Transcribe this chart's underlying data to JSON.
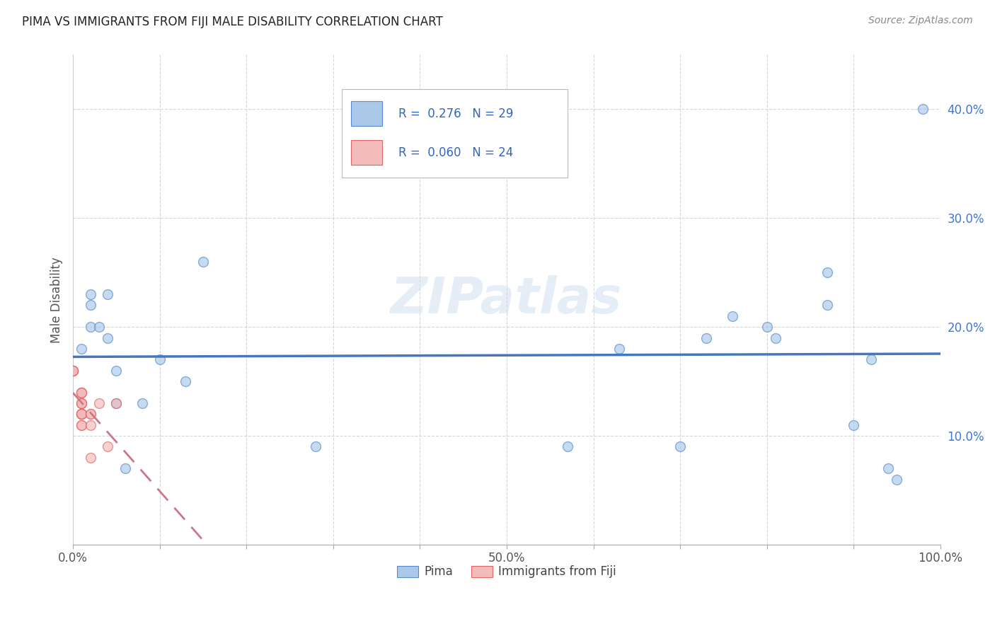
{
  "title": "PIMA VS IMMIGRANTS FROM FIJI MALE DISABILITY CORRELATION CHART",
  "source": "Source: ZipAtlas.com",
  "ylabel": "Male Disability",
  "xlim": [
    0,
    1.0
  ],
  "ylim": [
    0,
    0.45
  ],
  "pima_color": "#a8c8e8",
  "fiji_color": "#f4b8b8",
  "pima_edge": "#5588cc",
  "fiji_edge": "#dd6666",
  "pima_line_color": "#4477bb",
  "fiji_line_color": "#cc7788",
  "pima_R": "0.276",
  "pima_N": "29",
  "fiji_R": "0.060",
  "fiji_N": "24",
  "pima_x": [
    0.01,
    0.02,
    0.02,
    0.03,
    0.04,
    0.05,
    0.05,
    0.06,
    0.08,
    0.1,
    0.13,
    0.15,
    0.57,
    0.63,
    0.7,
    0.73,
    0.76,
    0.8,
    0.81,
    0.87,
    0.87,
    0.9,
    0.92,
    0.94,
    0.95,
    0.98,
    0.02,
    0.04,
    0.28
  ],
  "pima_y": [
    0.18,
    0.23,
    0.2,
    0.2,
    0.19,
    0.16,
    0.13,
    0.07,
    0.13,
    0.17,
    0.15,
    0.26,
    0.09,
    0.18,
    0.09,
    0.19,
    0.21,
    0.2,
    0.19,
    0.22,
    0.25,
    0.11,
    0.17,
    0.07,
    0.06,
    0.4,
    0.22,
    0.23,
    0.09
  ],
  "fiji_x": [
    0.0,
    0.0,
    0.0,
    0.0,
    0.01,
    0.01,
    0.01,
    0.01,
    0.01,
    0.01,
    0.01,
    0.01,
    0.01,
    0.01,
    0.01,
    0.01,
    0.01,
    0.02,
    0.02,
    0.02,
    0.02,
    0.03,
    0.04,
    0.05
  ],
  "fiji_y": [
    0.16,
    0.16,
    0.16,
    0.16,
    0.14,
    0.14,
    0.14,
    0.13,
    0.13,
    0.13,
    0.12,
    0.12,
    0.12,
    0.12,
    0.12,
    0.11,
    0.11,
    0.12,
    0.12,
    0.11,
    0.08,
    0.13,
    0.09,
    0.13
  ],
  "background_color": "#ffffff",
  "grid_color": "#cccccc",
  "marker_size": 100,
  "alpha": 0.65,
  "legend_pima_color": "#aac8e8",
  "legend_fiji_color": "#f4bbbb",
  "legend_text_color": "#3366bb",
  "watermark": "ZIPatlas"
}
